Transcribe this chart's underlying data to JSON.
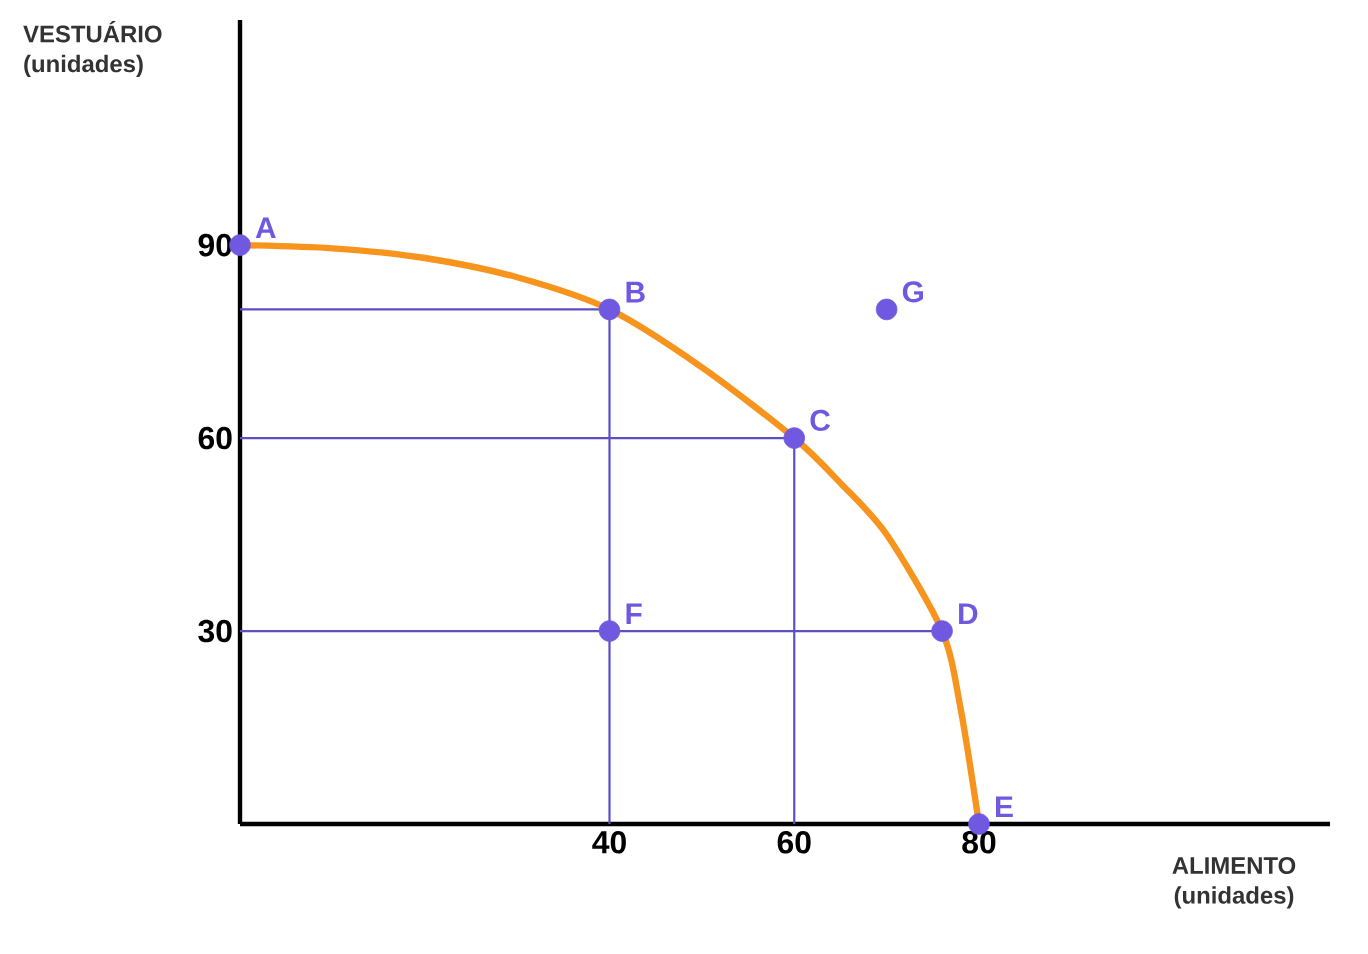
{
  "chart_data": {
    "type": "scatter",
    "xlabel": "ALIMENTO (unidades)",
    "ylabel": "VESTUÁRIO (unidades)",
    "xlim": [
      0,
      118
    ],
    "ylim": [
      0,
      125
    ],
    "xticks": [
      40,
      60,
      80
    ],
    "yticks": [
      30,
      60,
      90
    ],
    "line_style": "solid",
    "series": [
      {
        "type": "line",
        "marker": "none",
        "color": "#5b4fc4",
        "x": [
          0,
          40,
          40
        ],
        "values": [
          80,
          80,
          0
        ]
      },
      {
        "type": "line",
        "marker": "none",
        "color": "#5b4fc4",
        "x": [
          0,
          60,
          60
        ],
        "values": [
          60,
          60,
          0
        ]
      },
      {
        "type": "line",
        "marker": "none",
        "color": "#5b4fc4",
        "x": [
          0,
          76
        ],
        "values": [
          30,
          30
        ]
      },
      {
        "type": "line",
        "marker": "none",
        "color": "#f7941d",
        "x": [
          0,
          10,
          20,
          30,
          40,
          50,
          60,
          65,
          70,
          76,
          78,
          80
        ],
        "values": [
          90,
          89.5,
          88,
          85,
          80,
          71,
          60,
          53,
          45,
          30,
          18,
          0
        ]
      },
      {
        "marker": "circle",
        "color": "#7059e0",
        "x": [
          0,
          40,
          60,
          76,
          80,
          40,
          70
        ],
        "values": [
          90,
          80,
          60,
          30,
          0,
          30,
          80
        ]
      }
    ],
    "annotations": [
      {
        "text": "A",
        "x": 0,
        "y": 90
      },
      {
        "text": "B",
        "x": 40,
        "y": 80
      },
      {
        "text": "C",
        "x": 60,
        "y": 60
      },
      {
        "text": "D",
        "x": 76,
        "y": 30
      },
      {
        "text": "E",
        "x": 80,
        "y": 0
      },
      {
        "text": "F",
        "x": 40,
        "y": 30
      },
      {
        "text": "G",
        "x": 70,
        "y": 80
      }
    ]
  }
}
